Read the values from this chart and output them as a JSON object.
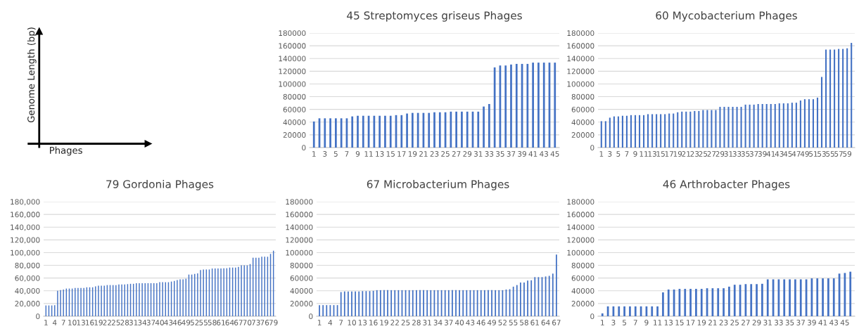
{
  "chart_data": [
    {
      "type": "other",
      "annotations": [
        "Genome Length (bp)",
        "Phages"
      ]
    },
    {
      "type": "bar",
      "title": "45 Streptomyces griseus Phages",
      "color": "#4472c4",
      "grid": "y",
      "ylim": [
        0,
        180000
      ],
      "yticks": [
        0,
        20000,
        40000,
        60000,
        80000,
        100000,
        120000,
        140000,
        160000,
        180000
      ],
      "categories": [
        "1",
        null,
        "3",
        null,
        "5",
        null,
        "7",
        null,
        "9",
        null,
        "11",
        null,
        "13",
        null,
        "15",
        null,
        "17",
        null,
        "19",
        null,
        "21",
        null,
        "23",
        null,
        "25",
        null,
        "27",
        null,
        "29",
        null,
        "31",
        null,
        "33",
        null,
        "35",
        null,
        "37",
        null,
        "39",
        null,
        "41",
        null,
        "43",
        null,
        "45"
      ],
      "values": [
        41000,
        46000,
        46000,
        46000,
        46000,
        46000,
        46000,
        49000,
        50000,
        50000,
        50000,
        50000,
        50000,
        50000,
        50000,
        51000,
        51000,
        53500,
        54500,
        54500,
        54500,
        54500,
        55500,
        55500,
        55500,
        56500,
        56500,
        56500,
        56500,
        56500,
        56500,
        64500,
        68500,
        126000,
        129000,
        129000,
        130500,
        131500,
        131500,
        131500,
        133500,
        133500,
        133500,
        133500,
        133500
      ]
    },
    {
      "type": "bar",
      "title": "60 Mycobacterium Phages",
      "color": "#4472c4",
      "grid": "y",
      "ylim": [
        0,
        180000
      ],
      "yticks": [
        0,
        20000,
        40000,
        60000,
        80000,
        100000,
        120000,
        140000,
        160000,
        180000
      ],
      "categories": [
        "1",
        null,
        "3",
        null,
        "5",
        null,
        "7",
        null,
        "9",
        null,
        "11",
        null,
        "13",
        null,
        "15",
        null,
        "17",
        null,
        "19",
        null,
        "21",
        null,
        "23",
        null,
        "25",
        null,
        "27",
        null,
        "29",
        null,
        "31",
        null,
        "33",
        null,
        "35",
        null,
        "37",
        null,
        "39",
        null,
        "41",
        null,
        "43",
        null,
        "45",
        null,
        "47",
        null,
        "49",
        null,
        "51",
        null,
        "53",
        null,
        "55",
        null,
        "57",
        null,
        "59",
        null
      ],
      "values": [
        41500,
        41500,
        47000,
        49000,
        49000,
        50000,
        50000,
        51000,
        51000,
        51000,
        51000,
        52500,
        52500,
        52500,
        52500,
        52500,
        53500,
        53500,
        55500,
        56500,
        56500,
        56500,
        57500,
        57500,
        59000,
        59000,
        59000,
        59000,
        64000,
        64000,
        64000,
        64000,
        64000,
        64000,
        67500,
        67500,
        67500,
        68500,
        68500,
        68500,
        68500,
        68500,
        69500,
        69500,
        69500,
        70500,
        70500,
        74000,
        76000,
        76000,
        76000,
        78500,
        111000,
        154000,
        154000,
        154000,
        155000,
        155000,
        156000,
        164500
      ]
    },
    {
      "type": "bar",
      "title": "79 Gordonia Phages",
      "color": "#4472c4",
      "grid": "y",
      "ylim": [
        0,
        180000
      ],
      "yticks": [
        0,
        {
          "value": 20000,
          "label": "20,000"
        },
        {
          "value": 40000,
          "label": "40,000"
        },
        {
          "value": 60000,
          "label": "60,000"
        },
        {
          "value": 80000,
          "label": "80,000"
        },
        {
          "value": 100000,
          "label": "100,000"
        },
        {
          "value": 120000,
          "label": "120,000"
        },
        {
          "value": 140000,
          "label": "140,000"
        },
        {
          "value": 160000,
          "label": "160,000"
        },
        {
          "value": 180000,
          "label": "180,000"
        }
      ],
      "categories": [
        "1",
        null,
        null,
        "4",
        null,
        null,
        "7",
        null,
        null,
        "10",
        null,
        null,
        "13",
        null,
        null,
        "16",
        null,
        null,
        "19",
        null,
        null,
        "22",
        null,
        null,
        "25",
        null,
        null,
        "28",
        null,
        null,
        "31",
        null,
        null,
        "34",
        null,
        null,
        "37",
        null,
        null,
        "40",
        null,
        null,
        "43",
        null,
        null,
        "46",
        null,
        null,
        "49",
        null,
        null,
        "52",
        null,
        null,
        "55",
        null,
        null,
        "58",
        null,
        null,
        "61",
        null,
        null,
        "64",
        null,
        null,
        "67",
        null,
        null,
        "70",
        null,
        null,
        "73",
        null,
        null,
        "76",
        null,
        null,
        "79"
      ],
      "values": [
        17000,
        17000,
        17000,
        17500,
        40000,
        41000,
        42000,
        43500,
        43500,
        43500,
        44500,
        44500,
        44500,
        44500,
        45500,
        45500,
        45500,
        47000,
        48000,
        48000,
        48000,
        49000,
        49000,
        49000,
        49000,
        50000,
        50000,
        50000,
        50500,
        51000,
        51000,
        52000,
        52000,
        52000,
        52000,
        52000,
        52000,
        52000,
        52000,
        53500,
        53500,
        53500,
        53500,
        54500,
        55500,
        57000,
        58000,
        58000,
        59000,
        65500,
        65500,
        66500,
        67500,
        72500,
        73500,
        73500,
        73500,
        75000,
        75000,
        75000,
        75000,
        75500,
        75500,
        76500,
        76500,
        76500,
        77500,
        80000,
        80000,
        80000,
        82000,
        92000,
        92000,
        92000,
        93500,
        93500,
        93500,
        98000,
        103000
      ]
    },
    {
      "type": "bar",
      "title": "67 Microbacterium Phages",
      "color": "#4472c4",
      "grid": "y",
      "ylim": [
        0,
        180000
      ],
      "yticks": [
        0,
        20000,
        40000,
        60000,
        80000,
        100000,
        120000,
        140000,
        160000,
        180000
      ],
      "categories": [
        "1",
        null,
        null,
        "4",
        null,
        null,
        "7",
        null,
        null,
        "10",
        null,
        null,
        "13",
        null,
        null,
        "16",
        null,
        null,
        "19",
        null,
        null,
        "22",
        null,
        null,
        "25",
        null,
        null,
        "28",
        null,
        null,
        "31",
        null,
        null,
        "34",
        null,
        null,
        "37",
        null,
        null,
        "40",
        null,
        null,
        "43",
        null,
        null,
        "46",
        null,
        null,
        "49",
        null,
        null,
        "52",
        null,
        null,
        "55",
        null,
        null,
        "58",
        null,
        null,
        "61",
        null,
        null,
        "64",
        null,
        null,
        "67"
      ],
      "values": [
        17500,
        17500,
        17500,
        17500,
        17500,
        17500,
        38000,
        39000,
        39000,
        39000,
        39000,
        39000,
        39500,
        39500,
        39500,
        40000,
        41000,
        41000,
        41000,
        41000,
        41000,
        41000,
        41000,
        41000,
        41000,
        41000,
        41000,
        41000,
        41000,
        41000,
        41000,
        41000,
        41000,
        41000,
        41000,
        41000,
        41000,
        41000,
        41000,
        41000,
        41000,
        41000,
        41000,
        41000,
        41000,
        41000,
        41000,
        41000,
        41000,
        41000,
        41000,
        41000,
        42000,
        42500,
        46500,
        49000,
        53000,
        53000,
        56000,
        56500,
        61500,
        61500,
        61500,
        62500,
        63500,
        67000,
        97000
      ]
    },
    {
      "type": "bar",
      "title": "46 Arthrobacter Phages",
      "color": "#4472c4",
      "grid": "y",
      "ylim": [
        0,
        180000
      ],
      "yticks": [
        0,
        20000,
        40000,
        60000,
        80000,
        100000,
        120000,
        140000,
        160000,
        180000
      ],
      "categories": [
        "1",
        null,
        "3",
        null,
        "5",
        null,
        "7",
        null,
        "9",
        null,
        "11",
        null,
        "13",
        null,
        "15",
        null,
        "17",
        null,
        "19",
        null,
        "21",
        null,
        "23",
        null,
        "25",
        null,
        "27",
        null,
        "29",
        null,
        "31",
        null,
        "33",
        null,
        "35",
        null,
        "37",
        null,
        "39",
        null,
        "41",
        null,
        "43",
        null,
        "45",
        null
      ],
      "values": [
        4500,
        15500,
        15500,
        15500,
        15500,
        15500,
        15500,
        15500,
        15500,
        15500,
        15500,
        37500,
        42000,
        42000,
        43000,
        43000,
        43000,
        43000,
        43000,
        44000,
        44000,
        44000,
        44000,
        46500,
        49500,
        49500,
        50500,
        50500,
        50500,
        51000,
        58000,
        58000,
        58000,
        58000,
        58000,
        58000,
        58000,
        58000,
        59500,
        59500,
        59500,
        59500,
        59500,
        67000,
        68000,
        70000
      ]
    }
  ]
}
